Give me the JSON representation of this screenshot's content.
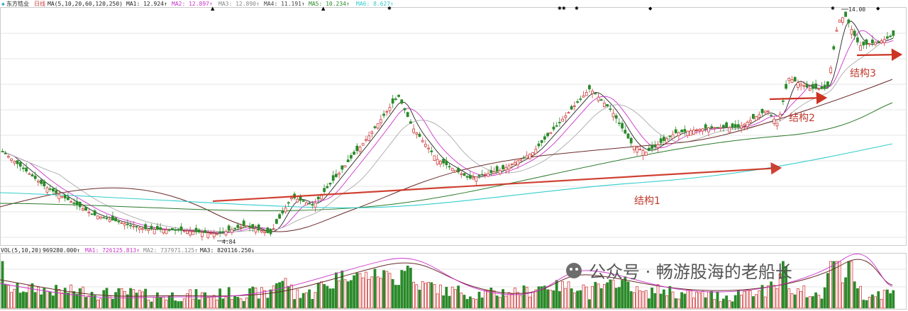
{
  "window": {
    "stock_name": "东方锆业",
    "period": "日线",
    "ma_legend": "MA(5,10,20,60,120,250)",
    "ma_values": [
      {
        "label": "MA1: 12.924↑",
        "color": "#222222"
      },
      {
        "label": "MA2: 12.897↑",
        "color": "#cc33cc"
      },
      {
        "label": "MA3: 12.890↑",
        "color": "#888888"
      },
      {
        "label": "MA4: 11.191↑",
        "color": "#444444"
      },
      {
        "label": "MA5: 10.234↑",
        "color": "#2a8a2a"
      },
      {
        "label": "MA6: 8.627↑",
        "color": "#33cccc"
      }
    ],
    "vol_legend": "VOL(5,10,20)",
    "vol_values": [
      {
        "label": "969280.000↑",
        "color": "#222222"
      },
      {
        "label": "MA1: 726125.813↑",
        "color": "#cc33cc"
      },
      {
        "label": "MA2: 737971.125↑",
        "color": "#888888"
      },
      {
        "label": "MA3: 820116.250↓",
        "color": "#222222"
      }
    ],
    "watermark": "公众号 · 畅游股海的老船长"
  },
  "colors": {
    "up": "#d04040",
    "down": "#2a8a2a",
    "ma5": "#222222",
    "ma10": "#cc33cc",
    "ma20": "#aaaaaa",
    "ma60": "#6b2a2a",
    "ma120": "#2a7a2a",
    "ma250": "#33cccc",
    "arrow": "#cc3322",
    "grid": "#e6e6e6"
  },
  "chart_data": {
    "type": "candlestick",
    "price_low_label": "4.84",
    "price_high_label": "14.00",
    "annotations": [
      "结构1",
      "结构2",
      "结构3"
    ],
    "series": [
      {
        "name": "MA1",
        "values": [
          12.924
        ]
      },
      {
        "name": "MA2",
        "values": [
          12.897
        ]
      },
      {
        "name": "MA3",
        "values": [
          12.89
        ]
      },
      {
        "name": "MA4",
        "values": [
          11.191
        ]
      },
      {
        "name": "MA5",
        "values": [
          10.234
        ]
      },
      {
        "name": "MA6",
        "values": [
          8.627
        ]
      }
    ],
    "volume": {
      "vol": 969280.0,
      "ma1": 726125.813,
      "ma2": 737971.125,
      "ma3": 820116.25
    }
  }
}
